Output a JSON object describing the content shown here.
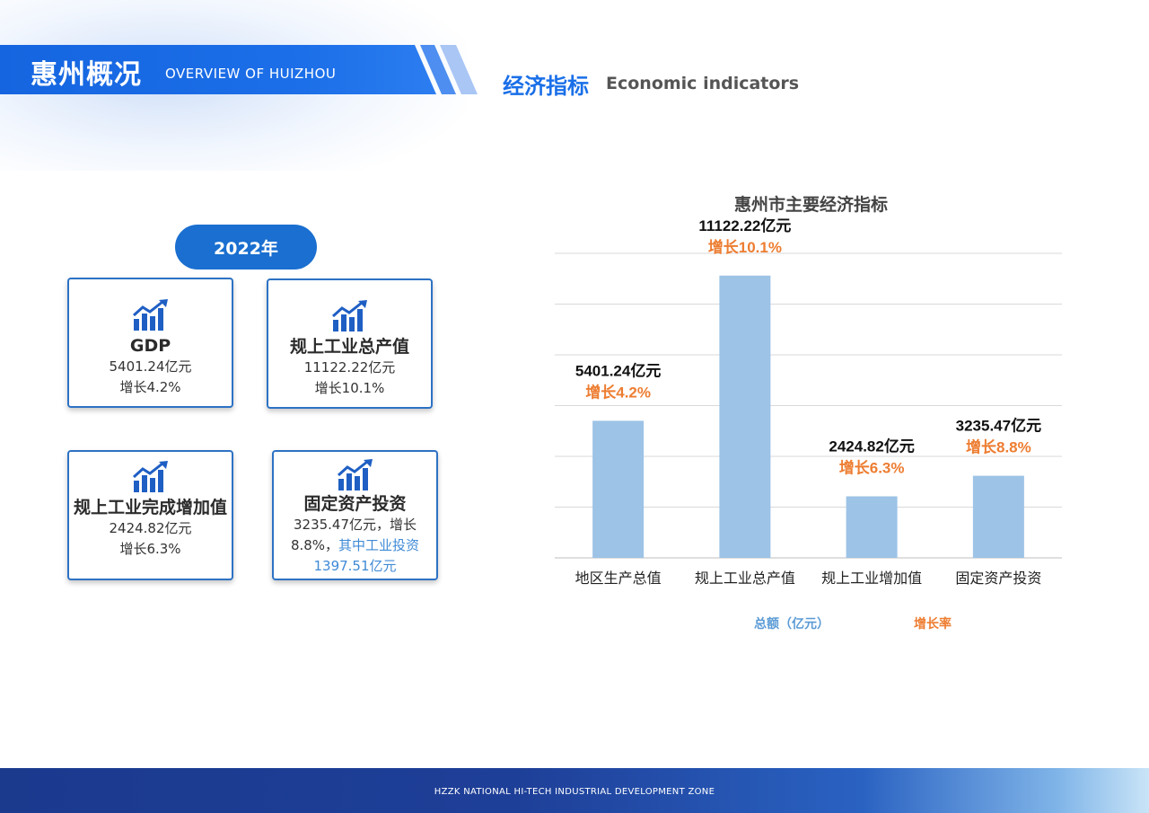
{
  "header": {
    "title_cn": "惠州概况",
    "title_en": "OVERVIEW OF HUIZHOU",
    "section_cn": "经济指标",
    "section_en": "Economic indicators"
  },
  "year_label": "2022年",
  "cards": [
    {
      "title": "GDP",
      "line1": "5401.24亿元",
      "line2": "增长4.2%",
      "icon": "growth-chart-icon"
    },
    {
      "title": "规上工业总产值",
      "line1": "11122.22亿元",
      "line2": "增长10.1%",
      "icon": "growth-chart-icon"
    },
    {
      "title": "规上工业完成增加值",
      "line1": "2424.82亿元",
      "line2": "增长6.3%",
      "icon": "growth-chart-icon"
    },
    {
      "title": "固定资产投资",
      "line1": "3235.47亿元，增长",
      "line2a": "8.8%，",
      "line2b": "其中工业投资",
      "line3": "1397.51亿元",
      "icon": "growth-chart-icon"
    }
  ],
  "chart_data": {
    "type": "bar",
    "title": "惠州市主要经济指标",
    "categories": [
      "地区生产总值",
      "规上工业总产值",
      "规上工业增加值",
      "固定资产投资"
    ],
    "series": [
      {
        "name": "总额（亿元）",
        "values": [
          5401.24,
          11122.22,
          2424.82,
          3235.47
        ]
      },
      {
        "name": "增长率",
        "values": [
          4.2,
          10.1,
          6.3,
          8.8
        ]
      }
    ],
    "value_labels": [
      "5401.24亿元",
      "11122.22亿元",
      "2424.82亿元",
      "3235.47亿元"
    ],
    "growth_labels": [
      "增长4.2%",
      "增长10.1%",
      "增长6.3%",
      "增长8.8%"
    ],
    "ylim": [
      0,
      12000
    ],
    "grid": true,
    "legend": "bottom",
    "colors": {
      "bar": "#9dc3e6",
      "growth": "#ed7d31",
      "value": "#111111",
      "legend_total": "#5b9bd5"
    }
  },
  "footer": "HZZK NATIONAL HI-TECH INDUSTRIAL DEVELOPMENT ZONE"
}
